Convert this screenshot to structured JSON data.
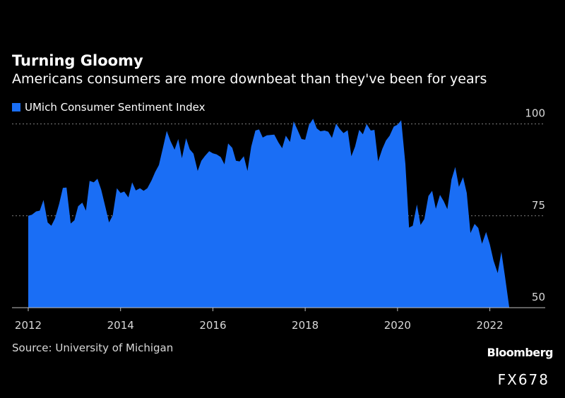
{
  "title": "Turning Gloomy",
  "subtitle": "Americans consumers are more downbeat than they've been for years",
  "legend_label": "UMich Consumer Sentiment Index",
  "source": "Source: University of Michigan",
  "brand": "Bloomberg",
  "code": "FX678",
  "colors": {
    "series": "#1a6ef5",
    "background": "#000000",
    "grid": "#7f7f7f"
  },
  "chart_data": {
    "type": "area",
    "title": "Turning Gloomy",
    "subtitle": "Americans consumers are more downbeat than they've been for years",
    "series": [
      {
        "name": "UMich Consumer Sentiment Index",
        "x": [
          2012.0,
          2012.08,
          2012.17,
          2012.25,
          2012.33,
          2012.42,
          2012.5,
          2012.58,
          2012.67,
          2012.75,
          2012.83,
          2012.92,
          2013.0,
          2013.08,
          2013.17,
          2013.25,
          2013.33,
          2013.42,
          2013.5,
          2013.58,
          2013.67,
          2013.75,
          2013.83,
          2013.92,
          2014.0,
          2014.08,
          2014.17,
          2014.25,
          2014.33,
          2014.42,
          2014.5,
          2014.58,
          2014.67,
          2014.75,
          2014.83,
          2014.92,
          2015.0,
          2015.08,
          2015.17,
          2015.25,
          2015.33,
          2015.42,
          2015.5,
          2015.58,
          2015.67,
          2015.75,
          2015.83,
          2015.92,
          2016.0,
          2016.08,
          2016.17,
          2016.25,
          2016.33,
          2016.42,
          2016.5,
          2016.58,
          2016.67,
          2016.75,
          2016.83,
          2016.92,
          2017.0,
          2017.08,
          2017.17,
          2017.25,
          2017.33,
          2017.42,
          2017.5,
          2017.58,
          2017.67,
          2017.75,
          2017.83,
          2017.92,
          2018.0,
          2018.08,
          2018.17,
          2018.25,
          2018.33,
          2018.42,
          2018.5,
          2018.58,
          2018.67,
          2018.75,
          2018.83,
          2018.92,
          2019.0,
          2019.08,
          2019.17,
          2019.25,
          2019.33,
          2019.42,
          2019.5,
          2019.58,
          2019.67,
          2019.75,
          2019.83,
          2019.92,
          2020.0,
          2020.08,
          2020.17,
          2020.25,
          2020.33,
          2020.42,
          2020.5,
          2020.58,
          2020.67,
          2020.75,
          2020.83,
          2020.92,
          2021.0,
          2021.08,
          2021.17,
          2021.25,
          2021.33,
          2021.42,
          2021.5,
          2021.58,
          2021.67,
          2021.75,
          2021.83,
          2021.92,
          2022.0,
          2022.08,
          2022.17,
          2022.25,
          2022.33,
          2022.42
        ],
        "values": [
          75.0,
          75.3,
          76.2,
          76.4,
          79.3,
          73.2,
          72.3,
          74.3,
          78.3,
          82.6,
          82.7,
          72.9,
          73.8,
          77.6,
          78.6,
          76.4,
          84.5,
          84.1,
          85.1,
          82.1,
          77.5,
          73.2,
          75.1,
          82.5,
          81.2,
          81.6,
          80.0,
          84.1,
          81.9,
          82.5,
          81.8,
          82.5,
          84.6,
          86.9,
          88.8,
          93.6,
          98.1,
          95.4,
          93.0,
          95.9,
          90.7,
          96.1,
          93.1,
          91.9,
          87.2,
          90.0,
          91.3,
          92.6,
          92.0,
          91.7,
          91.0,
          89.0,
          94.7,
          93.5,
          90.0,
          89.8,
          91.2,
          87.2,
          93.8,
          98.2,
          98.5,
          96.3,
          96.9,
          97.0,
          97.1,
          95.0,
          93.4,
          96.8,
          95.1,
          100.7,
          98.5,
          95.9,
          95.7,
          99.7,
          101.4,
          98.8,
          98.0,
          98.2,
          97.9,
          96.2,
          100.1,
          98.6,
          97.5,
          98.3,
          91.2,
          93.8,
          98.4,
          97.2,
          100.0,
          98.2,
          98.4,
          89.8,
          93.2,
          95.5,
          96.8,
          99.3,
          99.8,
          101.0,
          89.1,
          71.8,
          72.3,
          78.1,
          72.5,
          74.1,
          80.4,
          81.8,
          76.9,
          80.7,
          79.0,
          76.8,
          84.9,
          88.3,
          82.9,
          85.5,
          81.2,
          70.3,
          72.8,
          71.7,
          67.4,
          70.6,
          67.2,
          62.8,
          59.4,
          65.2,
          58.4,
          50.2
        ]
      }
    ],
    "xlim": [
      2012,
      2023.2
    ],
    "ylim": [
      50,
      103
    ],
    "xticks": [
      "2012",
      "2014",
      "2016",
      "2018",
      "2020",
      "2022"
    ],
    "yticks": [
      "100",
      "75",
      "50"
    ],
    "ytick_values": [
      100,
      75,
      50
    ],
    "xtick_values": [
      2012,
      2014,
      2016,
      2018,
      2020,
      2022
    ],
    "grid": true,
    "legend": "top-left"
  }
}
